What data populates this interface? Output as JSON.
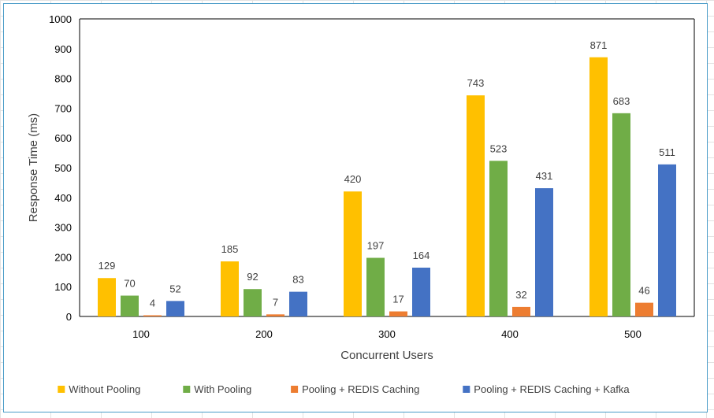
{
  "chart_data": {
    "type": "bar",
    "categories": [
      "100",
      "200",
      "300",
      "400",
      "500"
    ],
    "series": [
      {
        "name": "Without Pooling",
        "color": "#FFC000",
        "values": [
          129,
          185,
          420,
          743,
          871
        ]
      },
      {
        "name": "With Pooling",
        "color": "#70AD47",
        "values": [
          70,
          92,
          197,
          523,
          683
        ]
      },
      {
        "name": "Pooling + REDIS Caching",
        "color": "#ED7D31",
        "values": [
          4,
          7,
          17,
          32,
          46
        ]
      },
      {
        "name": "Pooling + REDIS Caching + Kafka",
        "color": "#4472C4",
        "values": [
          52,
          83,
          164,
          431,
          511
        ]
      }
    ],
    "xlabel": "Concurrent Users",
    "ylabel": "Response Time (ms)",
    "ylim": [
      0,
      1000
    ],
    "yticks": [
      0,
      100,
      200,
      300,
      400,
      500,
      600,
      700,
      800,
      900,
      1000
    ],
    "grid": false,
    "legend": "bottom"
  }
}
